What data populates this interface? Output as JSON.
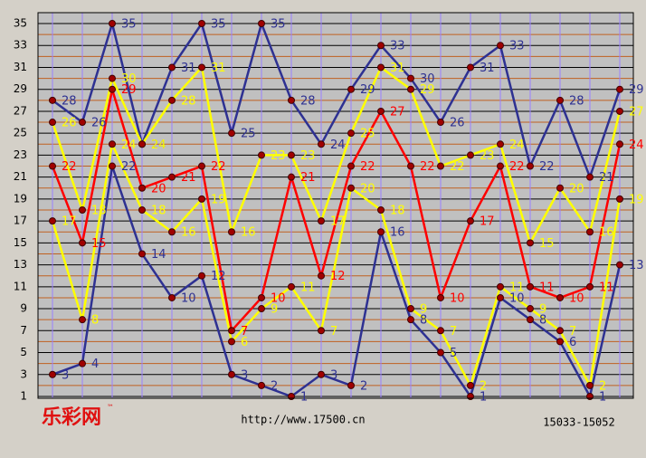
{
  "chart_data": {
    "type": "line",
    "logo": "乐彩网",
    "logo_mark": "™",
    "url": "http://www.17500.cn",
    "range": "15033-15052",
    "ylim": [
      1,
      35
    ],
    "yticks": [
      1,
      3,
      5,
      7,
      9,
      11,
      13,
      15,
      17,
      19,
      21,
      23,
      25,
      27,
      29,
      31,
      33,
      35
    ],
    "grid": true,
    "series": [
      {
        "color": "#2e3192",
        "values": [
          28,
          26,
          35,
          24,
          31,
          35,
          25,
          35,
          28,
          24,
          29,
          33,
          30,
          26,
          31,
          33,
          22,
          28,
          21,
          29
        ]
      },
      {
        "color": "#ffff00",
        "values": [
          26,
          18,
          30,
          24,
          28,
          31,
          16,
          23,
          23,
          17,
          25,
          31,
          29,
          22,
          23,
          24,
          15,
          20,
          16,
          27
        ]
      },
      {
        "color": "#ff0000",
        "values": [
          22,
          15,
          29,
          20,
          21,
          22,
          7,
          10,
          21,
          12,
          22,
          27,
          22,
          10,
          17,
          22,
          11,
          10,
          11,
          24
        ]
      },
      {
        "color": "#ffff00",
        "values": [
          17,
          8,
          24,
          18,
          16,
          19,
          6,
          9,
          11,
          7,
          20,
          18,
          9,
          7,
          2,
          11,
          9,
          7,
          2,
          19
        ]
      },
      {
        "color": "#2e3192",
        "values": [
          3,
          4,
          22,
          14,
          10,
          12,
          3,
          2,
          1,
          3,
          2,
          16,
          8,
          5,
          1,
          10,
          8,
          6,
          1,
          13
        ]
      }
    ]
  }
}
